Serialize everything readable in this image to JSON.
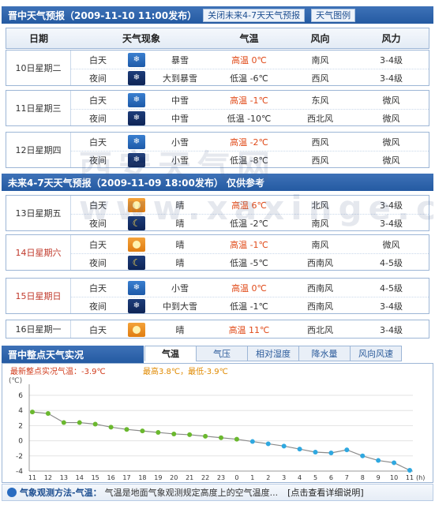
{
  "header1": {
    "title": "晋中天气预报（2009-11-10 11:00发布）",
    "btn_close": "关闭未来4-7天天气预报",
    "btn_legend": "天气图例"
  },
  "columns": {
    "date": "日期",
    "phenomenon": "天气现象",
    "temp": "气温",
    "wind_dir": "风向",
    "wind_force": "风力"
  },
  "days": [
    {
      "name": "10日星期二",
      "red": false,
      "periods": [
        {
          "period": "白天",
          "icon": "snow",
          "phen": "暴雪",
          "temp": "高温 0℃",
          "high": true,
          "wd": "南风",
          "ws": "3-4级"
        },
        {
          "period": "夜间",
          "icon": "snow-night",
          "phen": "大到暴雪",
          "temp": "低温 -6℃",
          "high": false,
          "wd": "西风",
          "ws": "3-4级"
        }
      ]
    },
    {
      "name": "11日星期三",
      "red": false,
      "periods": [
        {
          "period": "白天",
          "icon": "snow",
          "phen": "中雪",
          "temp": "高温 -1℃",
          "high": true,
          "wd": "东风",
          "ws": "微风"
        },
        {
          "period": "夜间",
          "icon": "snow-night",
          "phen": "中雪",
          "temp": "低温 -10℃",
          "high": false,
          "wd": "西北风",
          "ws": "微风"
        }
      ]
    },
    {
      "name": "12日星期四",
      "red": false,
      "periods": [
        {
          "period": "白天",
          "icon": "snow",
          "phen": "小雪",
          "temp": "高温 -2℃",
          "high": true,
          "wd": "西风",
          "ws": "微风"
        },
        {
          "period": "夜间",
          "icon": "snow-night",
          "phen": "小雪",
          "temp": "低温 -8℃",
          "high": false,
          "wd": "西风",
          "ws": "微风"
        }
      ]
    },
    {
      "name": "13日星期五",
      "red": false,
      "periods": [
        {
          "period": "白天",
          "icon": "sun",
          "phen": "晴",
          "temp": "高温 6℃",
          "high": true,
          "wd": "北风",
          "ws": "3-4级"
        },
        {
          "period": "夜间",
          "icon": "moon",
          "phen": "晴",
          "temp": "低温 -2℃",
          "high": false,
          "wd": "南风",
          "ws": "3-4级"
        }
      ]
    },
    {
      "name": "14日星期六",
      "red": true,
      "periods": [
        {
          "period": "白天",
          "icon": "sun",
          "phen": "晴",
          "temp": "高温 -1℃",
          "high": true,
          "wd": "南风",
          "ws": "微风"
        },
        {
          "period": "夜间",
          "icon": "moon",
          "phen": "晴",
          "temp": "低温 -5℃",
          "high": false,
          "wd": "西南风",
          "ws": "4-5级"
        }
      ]
    },
    {
      "name": "15日星期日",
      "red": true,
      "periods": [
        {
          "period": "白天",
          "icon": "snow",
          "phen": "小雪",
          "temp": "高温 0℃",
          "high": true,
          "wd": "西南风",
          "ws": "4-5级"
        },
        {
          "period": "夜间",
          "icon": "snow-night",
          "phen": "中到大雪",
          "temp": "低温 -1℃",
          "high": false,
          "wd": "西南风",
          "ws": "3-4级"
        }
      ]
    },
    {
      "name": "16日星期一",
      "red": false,
      "periods": [
        {
          "period": "白天",
          "icon": "sun",
          "phen": "晴",
          "temp": "高温 11℃",
          "high": true,
          "wd": "西北风",
          "ws": "3-4级"
        }
      ]
    }
  ],
  "header2": {
    "title": "未来4-7天天气预报（2009-11-09 18:00发布）  仅供参考"
  },
  "watermark": "西安天气网 www.xaxinge.com",
  "header3": {
    "title": "晋中整点天气实况"
  },
  "tabs": [
    "气温",
    "气压",
    "相对湿度",
    "降水量",
    "风向风速"
  ],
  "chart_info": {
    "latest": "最新整点实况气温：-3.9℃",
    "range": "最高3.8℃，最低-3.9℃"
  },
  "chart_data": {
    "type": "line",
    "ylabel": "(℃)",
    "xlabel": "(h)",
    "ylim": [
      -4,
      6
    ],
    "yticks": [
      6,
      4,
      2,
      0,
      -2,
      -4
    ],
    "x": [
      "11",
      "12",
      "13",
      "14",
      "15",
      "16",
      "17",
      "18",
      "19",
      "20",
      "21",
      "22",
      "23",
      "0",
      "1",
      "2",
      "3",
      "4",
      "5",
      "6",
      "7",
      "8",
      "9",
      "10",
      "11"
    ],
    "values": [
      3.8,
      3.6,
      2.4,
      2.4,
      2.2,
      1.8,
      1.5,
      1.3,
      1.1,
      0.9,
      0.8,
      0.6,
      0.4,
      0.2,
      -0.1,
      -0.4,
      -0.7,
      -1.1,
      -1.5,
      -1.6,
      -1.2,
      -2.0,
      -2.6,
      -2.9,
      -3.9
    ],
    "colors": {
      "above_zero": "#6ab82e",
      "below_zero": "#2fa8e0",
      "line": "#8a8a8a"
    }
  },
  "footer": {
    "label": "气象观测方法-气温：",
    "text": "气温是地面气象观测规定高度上的空气温度...",
    "link": "[点击查看详细说明]"
  }
}
